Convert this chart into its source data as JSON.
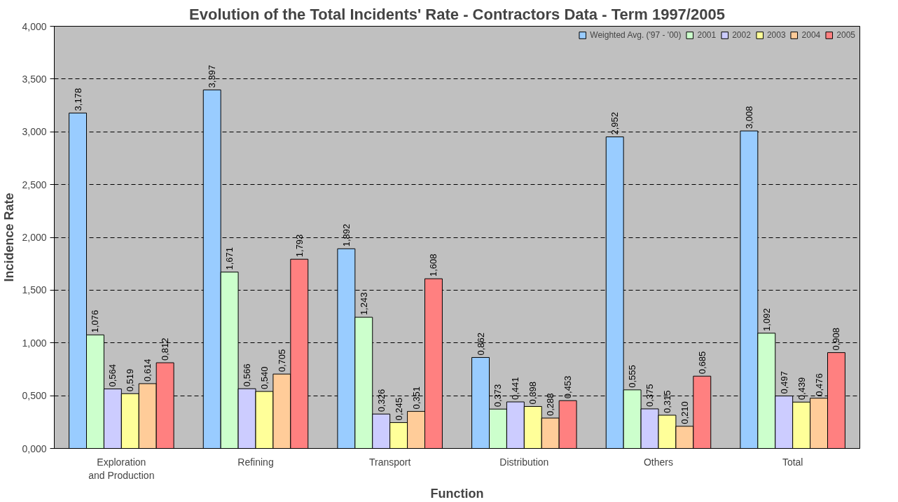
{
  "chart_data": {
    "type": "bar",
    "title": "Evolution of the Total Incidents' Rate - Contractors Data - Term 1997/2005",
    "xlabel": "Function",
    "ylabel": "Incidence Rate",
    "categories": [
      "Exploration and Production",
      "Refining",
      "Transport",
      "Distribution",
      "Others",
      "Total"
    ],
    "series": [
      {
        "name": "Weighted Avg. ('97 - '00)",
        "color": "#99ccff",
        "values": [
          3.178,
          3.397,
          1.892,
          0.862,
          2.952,
          3.008
        ],
        "value_labels": [
          "3,178",
          "3,397",
          "1,892",
          "0,862",
          "2,952",
          "3,008"
        ]
      },
      {
        "name": "2001",
        "color": "#ccffcc",
        "values": [
          1.076,
          1.671,
          1.243,
          0.373,
          0.555,
          1.092
        ],
        "value_labels": [
          "1,076",
          "1,671",
          "1,243",
          "0,373",
          "0,555",
          "1,092"
        ]
      },
      {
        "name": "2002",
        "color": "#ccccff",
        "values": [
          0.564,
          0.566,
          0.326,
          0.441,
          0.375,
          0.497
        ],
        "value_labels": [
          "0,564",
          "0,566",
          "0,326",
          "0,441",
          "0,375",
          "0,497"
        ]
      },
      {
        "name": "2003",
        "color": "#ffff99",
        "values": [
          0.519,
          0.54,
          0.245,
          0.398,
          0.315,
          0.439
        ],
        "value_labels": [
          "0,519",
          "0,540",
          "0,245",
          "0,398",
          "0,315",
          "0,439"
        ]
      },
      {
        "name": "2004",
        "color": "#ffcc99",
        "values": [
          0.614,
          0.705,
          0.351,
          0.288,
          0.21,
          0.476
        ],
        "value_labels": [
          "0,614",
          "0,705",
          "0,351",
          "0,288",
          "0,210",
          "0,476"
        ]
      },
      {
        "name": "2005",
        "color": "#ff8080",
        "values": [
          0.812,
          1.793,
          1.608,
          0.453,
          0.685,
          0.908
        ],
        "value_labels": [
          "0,812",
          "1,793",
          "1,608",
          "0,453",
          "0,685",
          "0,908"
        ]
      }
    ],
    "ylim": [
      0,
      4
    ],
    "yticks": [
      {
        "value": 0,
        "label": "0,000"
      },
      {
        "value": 0.5,
        "label": "0,500"
      },
      {
        "value": 1,
        "label": "1,000"
      },
      {
        "value": 1.5,
        "label": "1,500"
      },
      {
        "value": 2,
        "label": "2,000"
      },
      {
        "value": 2.5,
        "label": "2,500"
      },
      {
        "value": 3,
        "label": "3,000"
      },
      {
        "value": 3.5,
        "label": "3,500"
      },
      {
        "value": 4,
        "label": "4,000"
      }
    ],
    "grid": "y",
    "legend": "top right"
  }
}
